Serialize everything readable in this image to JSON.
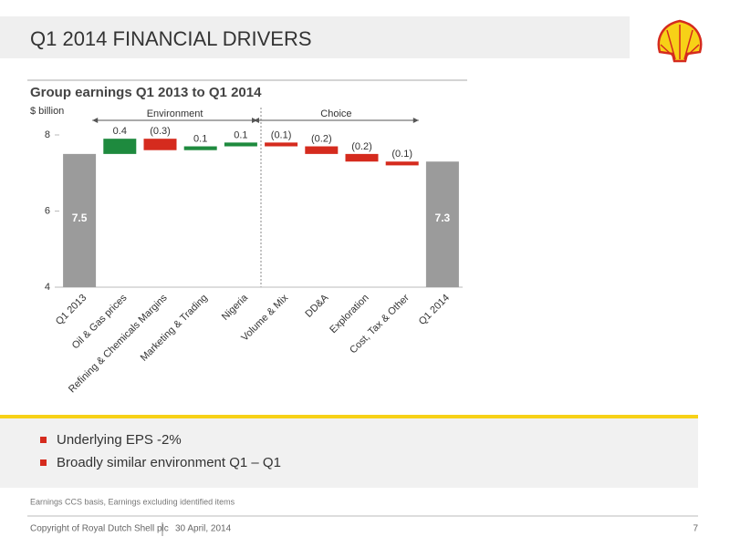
{
  "header": {
    "title": "Q1 2014 FINANCIAL DRIVERS"
  },
  "chart_data": {
    "type": "waterfall",
    "title": "Group earnings Q1 2013 to Q1 2014",
    "y_label": "$ billion",
    "categories": [
      "Q1 2013",
      "Oil & Gas prices",
      "Refining & Chemicals Margins",
      "Marketing & Trading",
      "Nigeria",
      "Volume & Mix",
      "DD&A",
      "Exploration",
      "Cost, Tax & Other",
      "Q1 2014"
    ],
    "values": [
      7.5,
      0.4,
      -0.3,
      0.1,
      0.1,
      -0.1,
      -0.2,
      -0.2,
      -0.1,
      7.3
    ],
    "value_labels": [
      "7.5",
      "0.4",
      "(0.3)",
      "0.1",
      "0.1",
      "(0.1)",
      "(0.2)",
      "(0.2)",
      "(0.1)",
      "7.3"
    ],
    "measure": [
      "absolute",
      "relative",
      "relative",
      "relative",
      "relative",
      "relative",
      "relative",
      "relative",
      "relative",
      "absolute"
    ],
    "colors": {
      "total": "#9b9b9b",
      "increase": "#1e8a3e",
      "decrease": "#d52b1e"
    },
    "groups": [
      "Environment",
      "Choice"
    ],
    "ylim": [
      4,
      8
    ],
    "yticks": [
      4,
      6,
      8
    ]
  },
  "bullets": [
    "Underlying EPS -2%",
    "Broadly similar environment Q1 – Q1"
  ],
  "footnote": "Earnings CCS basis, Earnings excluding identified items",
  "footer": {
    "copyright": "Copyright of Royal Dutch Shell plc",
    "date": "30  April, 2014",
    "page": "7"
  }
}
